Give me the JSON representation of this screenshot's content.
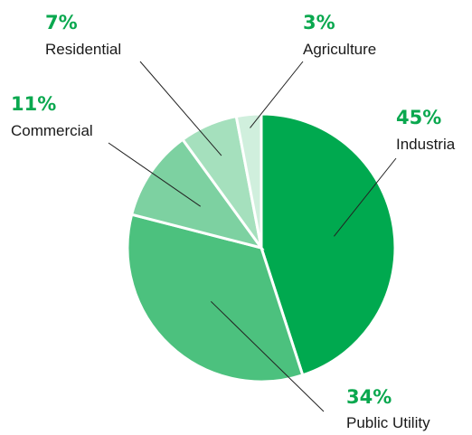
{
  "chart_data": {
    "type": "pie",
    "start_angle": "12 o'clock",
    "direction": "clockwise",
    "slices": [
      {
        "label": "Industria",
        "value": 45,
        "value_label": "45%",
        "color": "#00a94f"
      },
      {
        "label": "Public Utility",
        "value": 34,
        "value_label": "34%",
        "color": "#4cc17e"
      },
      {
        "label": "Commercial",
        "value": 11,
        "value_label": "11%",
        "color": "#7dd1a1"
      },
      {
        "label": "Residential",
        "value": 7,
        "value_label": "7%",
        "color": "#a5e0bd"
      },
      {
        "label": "Agriculture",
        "value": 3,
        "value_label": "3%",
        "color": "#d0efdd"
      }
    ],
    "value_label_color": "#0aa84f"
  }
}
